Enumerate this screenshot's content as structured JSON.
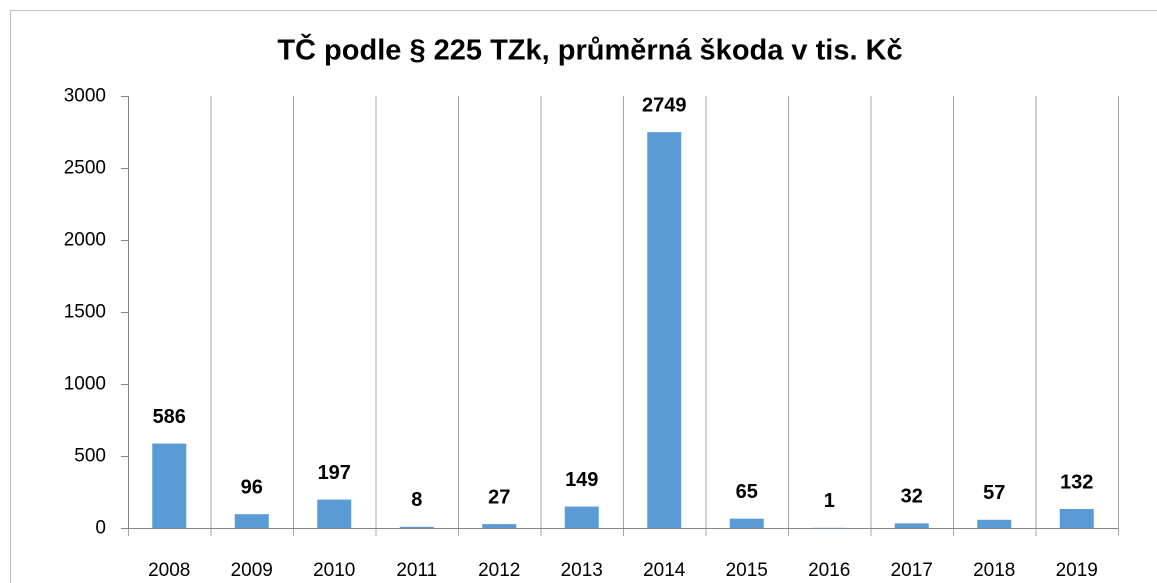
{
  "chart_data": {
    "type": "bar",
    "title": "TČ podle § 225 TZk, průměrná škoda v tis. Kč",
    "categories": [
      "2008",
      "2009",
      "2010",
      "2011",
      "2012",
      "2013",
      "2014",
      "2015",
      "2016",
      "2017",
      "2018",
      "2019"
    ],
    "values": [
      586,
      96,
      197,
      8,
      27,
      149,
      2749,
      65,
      1,
      32,
      57,
      132
    ],
    "color": "#5b9bd5",
    "ylim": [
      0,
      3000
    ],
    "yticks": [
      0,
      500,
      1000,
      1500,
      2000,
      2500,
      3000
    ],
    "grid": "x",
    "data_labels": true
  }
}
